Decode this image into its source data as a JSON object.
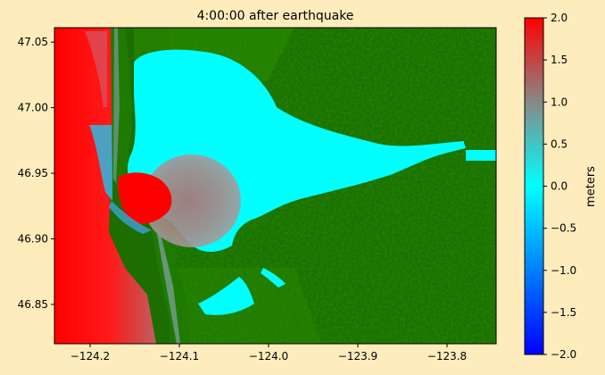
{
  "chart_data": {
    "type": "heatmap",
    "title": "4:00:00 after earthquake",
    "xlabel": "",
    "ylabel": "",
    "xlim": [
      -124.24,
      -123.745
    ],
    "ylim": [
      46.82,
      47.061
    ],
    "x_ticks": [
      -124.2,
      -124.1,
      -124.0,
      -123.9,
      -123.8
    ],
    "x_tick_labels": [
      "−124.2",
      "−124.1",
      "−124.0",
      "−123.9",
      "−123.8"
    ],
    "y_ticks": [
      46.85,
      46.9,
      46.95,
      47.0,
      47.05
    ],
    "y_tick_labels": [
      "46.85",
      "46.90",
      "46.95",
      "47.00",
      "47.05"
    ],
    "colorbar": {
      "label": "meters",
      "range": [
        -2.0,
        2.0
      ],
      "ticks": [
        2.0,
        1.5,
        1.0,
        0.5,
        0.0,
        -0.5,
        -1.0,
        -1.5,
        -2.0
      ],
      "tick_labels": [
        "2.0",
        "1.5",
        "1.0",
        "0.5",
        "0.0",
        "−0.5",
        "−1.0",
        "−1.5",
        "−2.0"
      ],
      "colors": [
        "#0000ff",
        "#00ffff",
        "#888888",
        "#ff0000"
      ]
    },
    "land_color": "#1c6e00",
    "grid": false
  }
}
